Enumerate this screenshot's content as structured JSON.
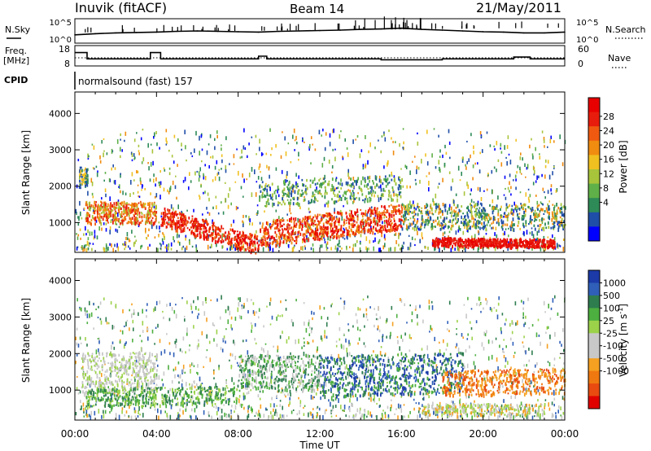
{
  "header": {
    "station": "Inuvik (fitACF)",
    "beam": "Beam 14",
    "date": "21/May/2011"
  },
  "summary_panels": {
    "nsky_label": "N.Sky",
    "nsearch_label": "N.Search",
    "nsky_ticks": [
      "10^5",
      "10^0"
    ],
    "nsearch_ticks": [
      "10^5",
      "10^0"
    ],
    "freq_label_line1": "Freq.",
    "freq_label_line2": "[MHz]",
    "freq_ticks": [
      "18",
      "8"
    ],
    "nave_label": "Nave",
    "nave_ticks": [
      "60",
      "0"
    ],
    "cpid_label": "CPID",
    "cpid_text": "normalsound (fast) 157"
  },
  "colors": {
    "power_scale": [
      "#0000ff",
      "#1f4ea8",
      "#2e8b57",
      "#5fb048",
      "#a8c43a",
      "#f0c020",
      "#f08c10",
      "#f05a10",
      "#e81c0c",
      "#e80000"
    ],
    "velocity_scale": [
      "#1c3aa8",
      "#2f5fb8",
      "#2e7d4f",
      "#4caf3f",
      "#9cd24a",
      "#c8c8c8",
      "#c8c8c8",
      "#f5a020",
      "#f07810",
      "#e84a10",
      "#e00000"
    ]
  },
  "chart_data": [
    {
      "type": "line",
      "name": "sky_noise",
      "ylabel": "N.Sky",
      "x": [
        "00:00",
        "01:00",
        "02:00",
        "03:00",
        "04:00",
        "05:00",
        "06:00",
        "07:00",
        "08:00",
        "09:00",
        "10:00",
        "11:00",
        "12:00",
        "13:00",
        "14:00",
        "15:00",
        "16:00",
        "17:00",
        "18:00",
        "19:00",
        "20:00",
        "21:00",
        "22:00",
        "23:00",
        "00:00"
      ],
      "values": [
        1.5,
        1.8,
        2.0,
        2.1,
        2.2,
        2.4,
        2.5,
        2.4,
        2.3,
        2.2,
        2.4,
        2.5,
        2.6,
        2.7,
        2.9,
        3.0,
        3.2,
        2.9,
        2.7,
        2.5,
        2.3,
        2.2,
        2.0,
        2.0,
        2.2
      ]
    },
    {
      "type": "line",
      "name": "frequency_nave",
      "ylabel": "Freq. [MHz]",
      "ylim": [
        8,
        18
      ],
      "x_hours": [
        0,
        0.6,
        0.6,
        3.7,
        3.7,
        4.2,
        4.2,
        9.0,
        9.0,
        9.4,
        9.4,
        11.2,
        11.2,
        15.0,
        15.0,
        18.0,
        18.0,
        21.5,
        21.5,
        22.3,
        22.3,
        24
      ],
      "values": [
        15,
        15,
        11.5,
        11.5,
        15,
        15,
        11.5,
        11.5,
        13,
        13,
        11.5,
        11.5,
        11.5,
        11.5,
        11,
        11,
        11.5,
        11.5,
        12.5,
        12.5,
        11.5,
        11.5
      ]
    },
    {
      "type": "heatmap",
      "name": "power",
      "xlabel": "Time UT",
      "ylabel": "Slant Range [km]",
      "x_ticks": [
        "00:00",
        "04:00",
        "08:00",
        "12:00",
        "16:00",
        "20:00",
        "00:00"
      ],
      "xlim_hours": [
        0,
        24
      ],
      "y_ticks": [
        1000,
        2000,
        3000,
        4000
      ],
      "ylim": [
        180,
        4590
      ],
      "colorbar": {
        "label": "Power [dB]",
        "ticks": [
          4,
          8,
          12,
          16,
          20,
          24,
          28
        ],
        "range": [
          0,
          30
        ]
      }
    },
    {
      "type": "heatmap",
      "name": "velocity",
      "xlabel": "Time UT",
      "ylabel": "Slant Range [km]",
      "x_ticks": [
        "00:00",
        "04:00",
        "08:00",
        "12:00",
        "16:00",
        "20:00",
        "00:00"
      ],
      "xlim_hours": [
        0,
        24
      ],
      "y_ticks": [
        1000,
        2000,
        3000,
        4000
      ],
      "ylim": [
        180,
        4590
      ],
      "colorbar": {
        "label": "Velocity [m s^-1]",
        "ticks": [
          1000,
          500,
          100,
          25,
          -25,
          -100,
          -500,
          -1000
        ]
      }
    }
  ],
  "axes": {
    "xlabel": "Time UT",
    "ylabel": "Slant Range [km]",
    "x_ticks": [
      "00:00",
      "04:00",
      "08:00",
      "12:00",
      "16:00",
      "20:00",
      "00:00"
    ],
    "y_ticks": [
      "1000",
      "2000",
      "3000",
      "4000"
    ],
    "power_label": "Power [dB]",
    "power_ticks": [
      "28",
      "24",
      "20",
      "16",
      "12",
      "8",
      "4"
    ],
    "velocity_label": "Velocity [m s",
    "velocity_label_exp": "-1",
    "velocity_label_end": "]",
    "velocity_ticks": [
      "1000",
      "500",
      "100",
      "25",
      "-25",
      "-100",
      "-500",
      "-1000"
    ]
  }
}
